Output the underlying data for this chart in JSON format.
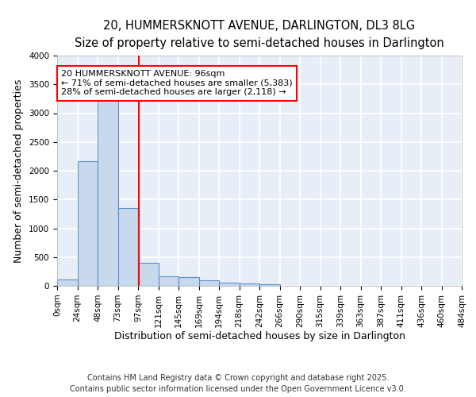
{
  "title_line1": "20, HUMMERSKNOTT AVENUE, DARLINGTON, DL3 8LG",
  "title_line2": "Size of property relative to semi-detached houses in Darlington",
  "xlabel": "Distribution of semi-detached houses by size in Darlington",
  "ylabel": "Number of semi-detached properties",
  "bin_labels": [
    "0sqm",
    "24sqm",
    "48sqm",
    "73sqm",
    "97sqm",
    "121sqm",
    "145sqm",
    "169sqm",
    "194sqm",
    "218sqm",
    "242sqm",
    "266sqm",
    "290sqm",
    "315sqm",
    "339sqm",
    "363sqm",
    "387sqm",
    "411sqm",
    "436sqm",
    "460sqm",
    "484sqm"
  ],
  "bar_heights": [
    110,
    2160,
    3280,
    1350,
    400,
    165,
    155,
    95,
    55,
    35,
    30,
    0,
    0,
    0,
    0,
    0,
    0,
    0,
    0,
    0
  ],
  "bar_color": "#c9d9ed",
  "bar_edge_color": "#5b8fc9",
  "background_color": "#e8eef8",
  "grid_color": "#ffffff",
  "annotation_text": "20 HUMMERSKNOTT AVENUE: 96sqm\n← 71% of semi-detached houses are smaller (5,383)\n28% of semi-detached houses are larger (2,118) →",
  "red_line_x": 97,
  "bin_width": 24,
  "ylim": [
    0,
    4000
  ],
  "yticks": [
    0,
    500,
    1000,
    1500,
    2000,
    2500,
    3000,
    3500,
    4000
  ],
  "footnote_line1": "Contains HM Land Registry data © Crown copyright and database right 2025.",
  "footnote_line2": "Contains public sector information licensed under the Open Government Licence v3.0.",
  "title_fontsize": 10.5,
  "subtitle_fontsize": 9.5,
  "axis_label_fontsize": 9,
  "tick_fontsize": 7.5,
  "annotation_fontsize": 8,
  "footnote_fontsize": 7
}
